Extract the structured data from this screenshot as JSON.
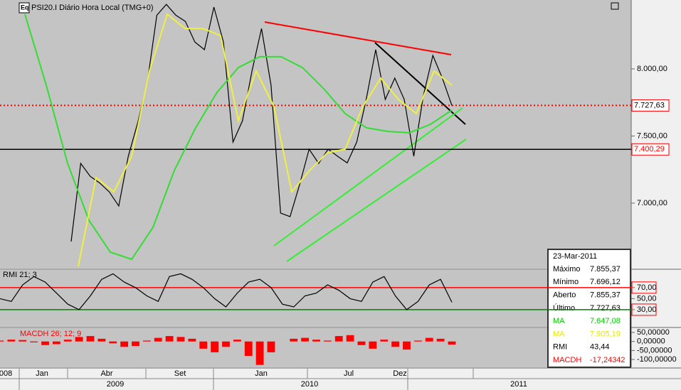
{
  "chart_data": [
    {
      "type": "line",
      "title": "PSI20.I Diário Hora Local (TMG+0)",
      "ylim": [
        6513,
        8513
      ],
      "yticks": [
        {
          "value": 7000,
          "label": "7.000,00"
        },
        {
          "value": 7500,
          "label": "7.500,00"
        },
        {
          "value": 8000,
          "label": "8.000,00"
        }
      ],
      "series": [
        {
          "color": "#000000",
          "values": [
            6714,
            7296,
            7200,
            7150,
            7084,
            6979,
            7350,
            7600,
            7900,
            8400,
            8480,
            8400,
            8354,
            8200,
            8143,
            8460,
            8200,
            7455,
            7614,
            7984,
            8301,
            7878,
            6926,
            6900,
            7137,
            7402,
            7296,
            7402,
            7349,
            7300,
            7455,
            7772,
            8143,
            7772,
            7931,
            7772,
            7349,
            7800,
            8100,
            7931,
            7728
          ]
        },
        {
          "color": "#33dd33",
          "values": [
            8407,
            7878,
            7296,
            6873,
            6635,
            6582,
            6820,
            7243,
            7561,
            7825,
            8010,
            8090,
            8090,
            8010,
            7852,
            7667,
            7561,
            7534,
            7524,
            7587,
            7693
          ]
        },
        {
          "color": "#f0f040",
          "values": [
            6529,
            7190,
            7084,
            7349,
            7984,
            8407,
            8301,
            8301,
            8248,
            7614,
            7984,
            7720,
            7084,
            7243,
            7375,
            7402,
            7720,
            7931,
            7772,
            7667,
            7984,
            7878
          ]
        }
      ],
      "levels": [
        {
          "value": 7727.63,
          "label": "7.727,63",
          "color": "#ff0000",
          "dotted": true
        },
        {
          "value": 7400.29,
          "label": "7.400,29",
          "color": "#000000",
          "dotted": false
        }
      ]
    },
    {
      "type": "line",
      "title": "RMI 21; 3",
      "ylim": [
        -1,
        102
      ],
      "yticks": [
        {
          "value": 70,
          "label": "70,00"
        },
        {
          "value": 50,
          "label": "50,00"
        },
        {
          "value": 30,
          "label": "30,00"
        }
      ],
      "series": [
        {
          "color": "#000000",
          "values": [
            50,
            45,
            75,
            90,
            80,
            60,
            40,
            30,
            55,
            85,
            95,
            80,
            70,
            55,
            45,
            90,
            95,
            85,
            70,
            50,
            35,
            60,
            80,
            85,
            70,
            40,
            35,
            55,
            60,
            75,
            65,
            50,
            45,
            80,
            90,
            55,
            30,
            45,
            75,
            85,
            43.44
          ]
        }
      ],
      "levels": [
        {
          "value": 70,
          "color": "#ff0000"
        },
        {
          "value": 30,
          "color": "#008000"
        }
      ]
    },
    {
      "type": "bar",
      "title": "MACDH 26; 12; 9",
      "ylim": [
        -143,
        73.6
      ],
      "yticks": [
        {
          "value": 50,
          "label": "50,00000"
        },
        {
          "value": 0,
          "label": "0,00000"
        },
        {
          "value": -50,
          "label": "-50,00000"
        },
        {
          "value": -100,
          "label": "-100,00000"
        }
      ],
      "series": [
        {
          "color": "#ff0000",
          "values": [
            5,
            10,
            8,
            -5,
            -20,
            -15,
            10,
            25,
            30,
            15,
            -10,
            -30,
            -25,
            5,
            20,
            30,
            25,
            15,
            -40,
            -60,
            -30,
            10,
            -80,
            -130,
            -60,
            0,
            15,
            20,
            10,
            5,
            30,
            35,
            -20,
            -40,
            10,
            -30,
            -45,
            5,
            20,
            15,
            -17.24342
          ]
        }
      ]
    }
  ],
  "time_axis": {
    "months": [
      "008",
      "Jan",
      "Abr",
      "Set",
      "Jan",
      "Jul",
      "Dez"
    ],
    "years": [
      "2009",
      "2010",
      "2011"
    ]
  },
  "info_box": {
    "date": "23-Mar-2011",
    "rows": [
      {
        "label": "Máximo",
        "value": "7.855,37",
        "color": "#000000"
      },
      {
        "label": "Mínimo",
        "value": "7.696,12",
        "color": "#000000"
      },
      {
        "label": "Aberto",
        "value": "7.855,37",
        "color": "#000000"
      },
      {
        "label": "Último",
        "value": "7.727,63",
        "color": "#000000"
      },
      {
        "label": "MA",
        "value": "7.647,08",
        "color": "#00cc00"
      },
      {
        "label": "MA",
        "value": "7.905,19",
        "color": "#e8e800"
      },
      {
        "label": "RMI",
        "value": "43,44",
        "color": "#000000"
      },
      {
        "label": "MACDH",
        "value": "-17,24342",
        "color": "#ff0000"
      }
    ]
  }
}
